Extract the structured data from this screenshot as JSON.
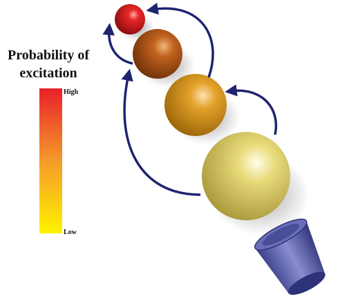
{
  "legend": {
    "title": [
      "Probability of",
      "excitation"
    ],
    "high": "High",
    "low": "Low"
  }
}
